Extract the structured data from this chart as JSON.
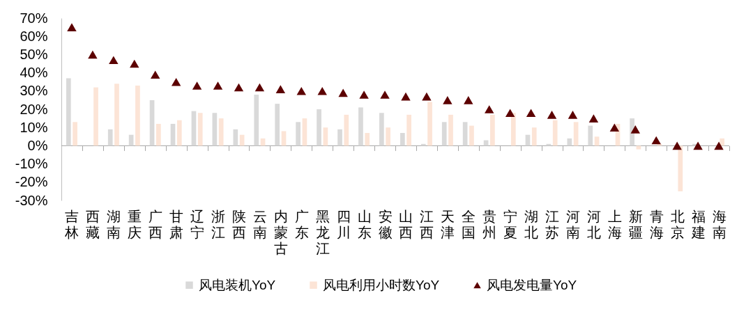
{
  "chart_data": {
    "type": "bar",
    "categories": [
      "吉林",
      "西藏",
      "湖南",
      "重庆",
      "广西",
      "甘肃",
      "辽宁",
      "浙江",
      "陕西",
      "云南",
      "内蒙古",
      "广东",
      "黑龙江",
      "四川",
      "山东",
      "安徽",
      "山西",
      "江西",
      "天津",
      "全国",
      "贵州",
      "宁夏",
      "湖北",
      "江苏",
      "河南",
      "河北",
      "上海",
      "新疆",
      "青海",
      "北京",
      "福建",
      "海南"
    ],
    "series": [
      {
        "name": "风电装机YoY",
        "color": "#d9d9d9",
        "values": [
          37,
          null,
          9,
          6,
          25,
          12,
          19,
          18,
          9,
          28,
          23,
          13,
          20,
          9,
          21,
          18,
          7,
          1,
          13,
          13,
          3,
          null,
          6,
          1,
          4,
          11,
          null,
          15,
          null,
          null,
          1,
          null
        ]
      },
      {
        "name": "风电利用小时数YoY",
        "color": "#fce4d6",
        "values": [
          13,
          32,
          34,
          33,
          12,
          14,
          18,
          15,
          6,
          4,
          8,
          15,
          10,
          17,
          7,
          10,
          17,
          24,
          17,
          11,
          17,
          18,
          10,
          14,
          13,
          5,
          12,
          -2,
          1,
          -25,
          null,
          4
        ]
      },
      {
        "name": "风电发电量YoY",
        "type": "scatter",
        "marker": "triangle",
        "color": "#5c0000",
        "values": [
          65,
          50,
          47,
          45,
          39,
          35,
          33,
          33,
          32,
          32,
          31,
          30,
          30,
          29,
          28,
          28,
          27,
          27,
          25,
          25,
          20,
          18,
          18,
          17,
          17,
          15,
          10,
          9,
          3,
          0,
          0,
          0
        ]
      }
    ],
    "ylim": [
      -30,
      70
    ],
    "yticks": [
      {
        "value": -30,
        "label": "-30%"
      },
      {
        "value": -20,
        "label": "-20%"
      },
      {
        "value": -10,
        "label": "-10%"
      },
      {
        "value": 0,
        "label": "0%"
      },
      {
        "value": 10,
        "label": "10%"
      },
      {
        "value": 20,
        "label": "20%"
      },
      {
        "value": 30,
        "label": "30%"
      },
      {
        "value": 40,
        "label": "40%"
      },
      {
        "value": 50,
        "label": "50%"
      },
      {
        "value": 60,
        "label": "60%"
      },
      {
        "value": 70,
        "label": "70%"
      }
    ],
    "ref_lines": [
      {
        "axis": "y",
        "value": 0,
        "color": "#a6a6a6",
        "line_style": "solid"
      }
    ],
    "grid": false,
    "legend": "bottom"
  }
}
